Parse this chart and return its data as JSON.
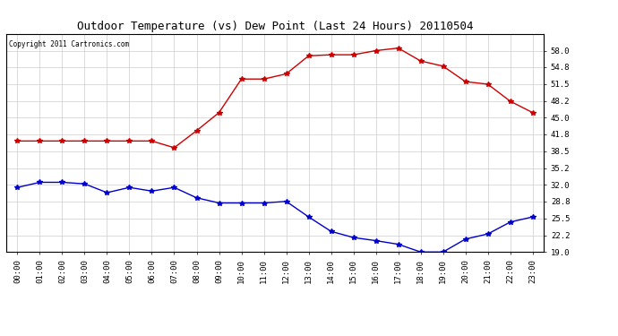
{
  "title": "Outdoor Temperature (vs) Dew Point (Last 24 Hours) 20110504",
  "copyright_text": "Copyright 2011 Cartronics.com",
  "hours": [
    "00:00",
    "01:00",
    "02:00",
    "03:00",
    "04:00",
    "05:00",
    "06:00",
    "07:00",
    "08:00",
    "09:00",
    "10:00",
    "11:00",
    "12:00",
    "13:00",
    "14:00",
    "15:00",
    "16:00",
    "17:00",
    "18:00",
    "19:00",
    "20:00",
    "21:00",
    "22:00",
    "23:00"
  ],
  "temp_red": [
    40.5,
    40.5,
    40.5,
    40.5,
    40.5,
    40.5,
    40.5,
    39.2,
    42.5,
    46.0,
    52.5,
    52.5,
    53.5,
    57.0,
    57.2,
    57.2,
    58.0,
    58.5,
    56.0,
    55.0,
    52.0,
    51.5,
    48.2,
    46.0
  ],
  "dew_blue": [
    31.5,
    32.5,
    32.5,
    32.2,
    30.5,
    31.5,
    30.8,
    31.5,
    29.5,
    28.5,
    28.5,
    28.5,
    28.8,
    25.8,
    23.0,
    21.8,
    21.2,
    20.5,
    19.0,
    19.0,
    21.5,
    22.5,
    24.8,
    25.8
  ],
  "ylim_min": 19.0,
  "ylim_max": 61.3,
  "yticks": [
    19.0,
    22.2,
    25.5,
    28.8,
    32.0,
    35.2,
    38.5,
    41.8,
    45.0,
    48.2,
    51.5,
    54.8,
    58.0
  ],
  "background_color": "#ffffff",
  "plot_bg_color": "#ffffff",
  "grid_color": "#cccccc",
  "red_color": "#cc0000",
  "blue_color": "#0000cc",
  "title_fontsize": 9,
  "tick_fontsize": 6.5,
  "copyright_fontsize": 5.5,
  "marker": "*",
  "markersize": 4,
  "linewidth": 1.0
}
